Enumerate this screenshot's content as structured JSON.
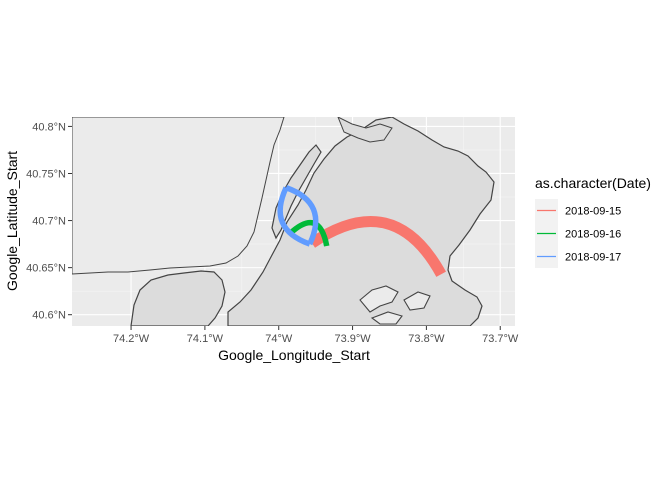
{
  "chart_data": {
    "type": "map-curves",
    "xlabel": "Google_Longitude_Start",
    "ylabel": "Google_Latitude_Start",
    "xlim": [
      -74.28,
      -73.68
    ],
    "ylim": [
      40.588,
      40.81
    ],
    "x_ticks": [
      {
        "value": -74.2,
        "label": "74.2°W"
      },
      {
        "value": -74.1,
        "label": "74.1°W"
      },
      {
        "value": -74.0,
        "label": "74°W"
      },
      {
        "value": -73.9,
        "label": "73.9°W"
      },
      {
        "value": -73.8,
        "label": "73.8°W"
      },
      {
        "value": -73.7,
        "label": "73.7°W"
      }
    ],
    "y_ticks": [
      {
        "value": 40.6,
        "label": "40.6°N"
      },
      {
        "value": 40.65,
        "label": "40.65°N"
      },
      {
        "value": 40.7,
        "label": "40.7°N"
      },
      {
        "value": 40.75,
        "label": "40.75°N"
      },
      {
        "value": 40.8,
        "label": "40.8°N"
      }
    ],
    "grid": true,
    "legend": {
      "title": "as.character(Date)",
      "placement": "right"
    },
    "series": [
      {
        "name": "2018-09-15",
        "color": "#F8766D",
        "curves": [
          {
            "x1": -73.955,
            "y1": 40.676,
            "x2": -73.78,
            "y2": 40.643,
            "curvature": -0.55
          }
        ]
      },
      {
        "name": "2018-09-16",
        "color": "#00BA38",
        "curves": [
          {
            "x1": -73.985,
            "y1": 40.686,
            "x2": -73.935,
            "y2": 40.673,
            "curvature": -0.9
          }
        ]
      },
      {
        "name": "2018-09-17",
        "color": "#619CFF",
        "curves": [
          {
            "x1": -73.99,
            "y1": 40.735,
            "x2": -73.958,
            "y2": 40.675,
            "curvature": 0.55
          },
          {
            "x1": -73.958,
            "y1": 40.675,
            "x2": -73.99,
            "y2": 40.735,
            "curvature": 0.55
          }
        ]
      }
    ]
  }
}
